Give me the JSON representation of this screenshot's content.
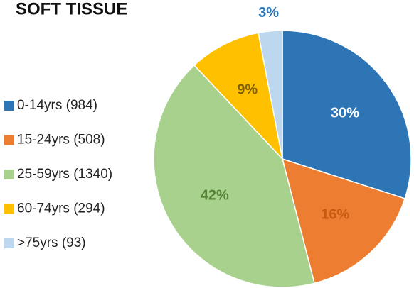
{
  "chart_data": {
    "type": "pie",
    "title": "SOFT TISSUE",
    "categories": [
      "0-14yrs (984)",
      "15-24yrs (508)",
      "25-59yrs (1340)",
      "60-74yrs (294)",
      ">75yrs (93)"
    ],
    "values": [
      30,
      16,
      42,
      9,
      3
    ],
    "value_labels": [
      "30%",
      "16%",
      "42%",
      "9%",
      "3%"
    ],
    "colors": [
      "#2e75b6",
      "#ed7d31",
      "#a9d18e",
      "#ffc000",
      "#bdd7ee"
    ],
    "label_colors": [
      "#ffffff",
      "#c55a11",
      "#548235",
      "#7f6000",
      "#2e75b6"
    ],
    "legend": "left"
  }
}
